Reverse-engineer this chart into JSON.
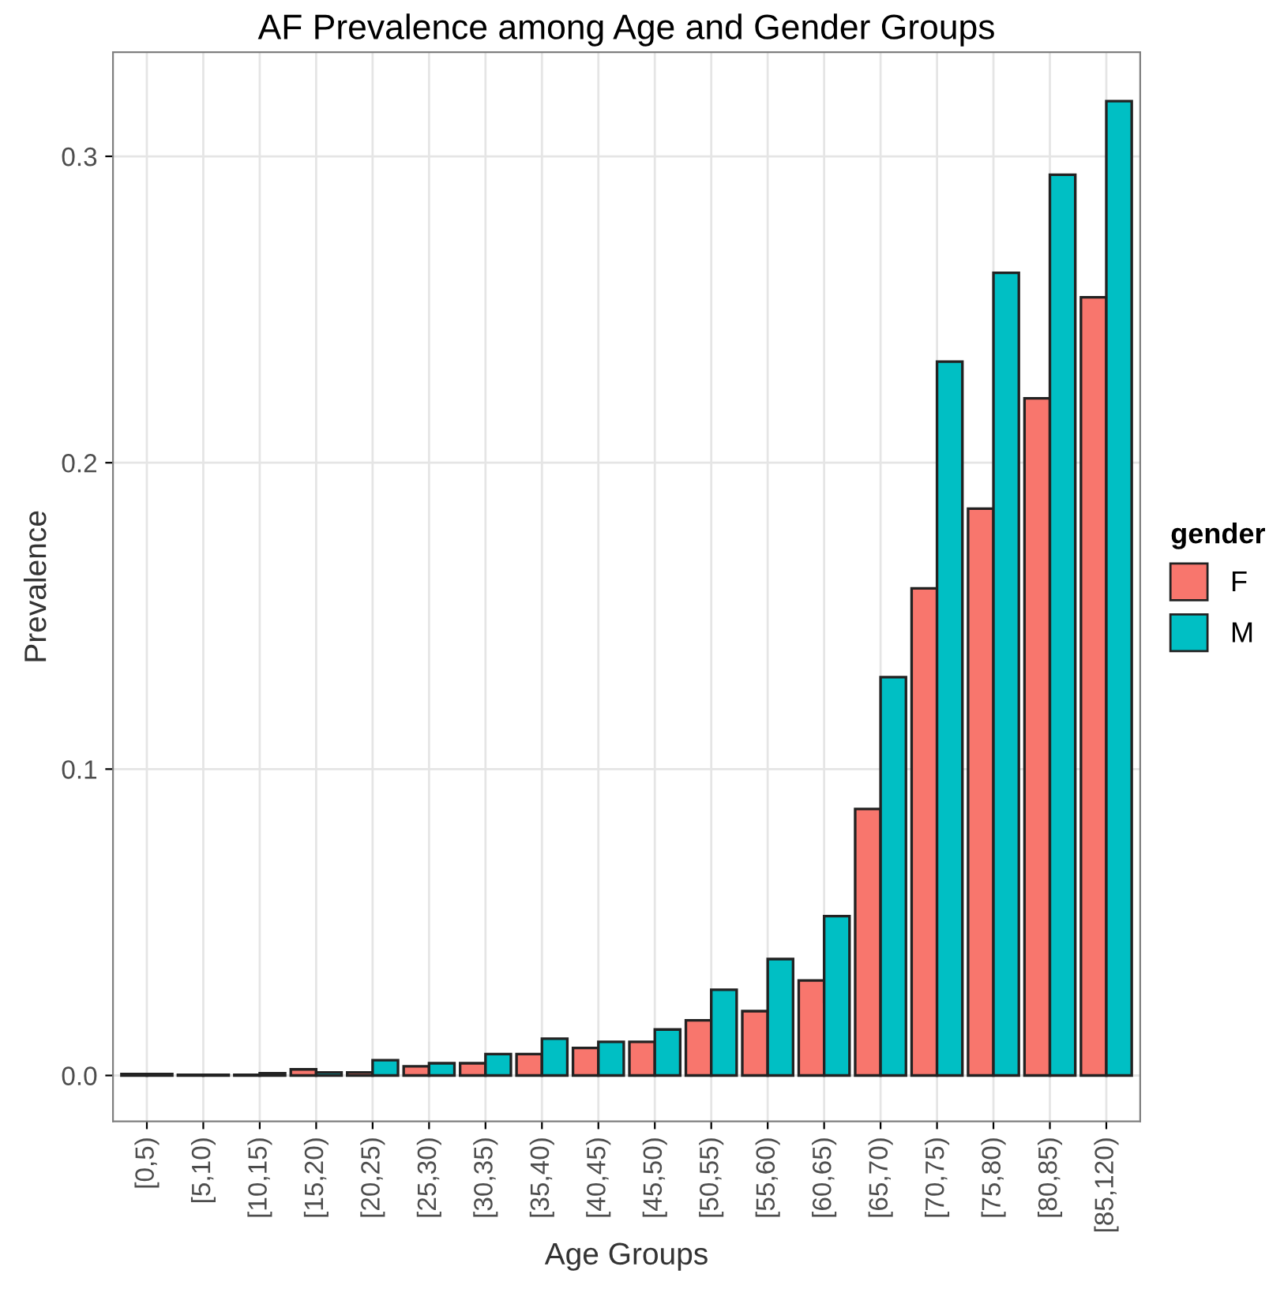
{
  "chart_data": {
    "type": "bar",
    "title": "AF Prevalence among Age and Gender Groups",
    "xlabel": "Age Groups",
    "ylabel": "Prevalence",
    "legend_title": "gender",
    "categories": [
      "[0,5)",
      "[5,10)",
      "[10,15)",
      "[15,20)",
      "[20,25)",
      "[25,30)",
      "[30,35)",
      "[35,40)",
      "[40,45)",
      "[45,50)",
      "[50,55)",
      "[55,60)",
      "[60,65)",
      "[65,70)",
      "[70,75)",
      "[75,80)",
      "[80,85)",
      "[85,120)"
    ],
    "series": [
      {
        "name": "F",
        "color": "#f8766d",
        "values": [
          0.0005,
          0.0002,
          0.0002,
          0.002,
          0.001,
          0.003,
          0.004,
          0.007,
          0.009,
          0.011,
          0.018,
          0.021,
          0.031,
          0.087,
          0.159,
          0.185,
          0.221,
          0.254
        ]
      },
      {
        "name": "M",
        "color": "#00bfc4",
        "values": [
          0.0005,
          0.0002,
          0.0007,
          0.001,
          0.005,
          0.004,
          0.007,
          0.012,
          0.011,
          0.015,
          0.028,
          0.038,
          0.052,
          0.13,
          0.233,
          0.262,
          0.294,
          0.318
        ]
      }
    ],
    "ylim": [
      -0.015,
      0.334
    ],
    "yticks": [
      {
        "value": 0,
        "label": "0.0"
      },
      0.1,
      0.2,
      0.3
    ],
    "grid": true,
    "legend": "right"
  }
}
